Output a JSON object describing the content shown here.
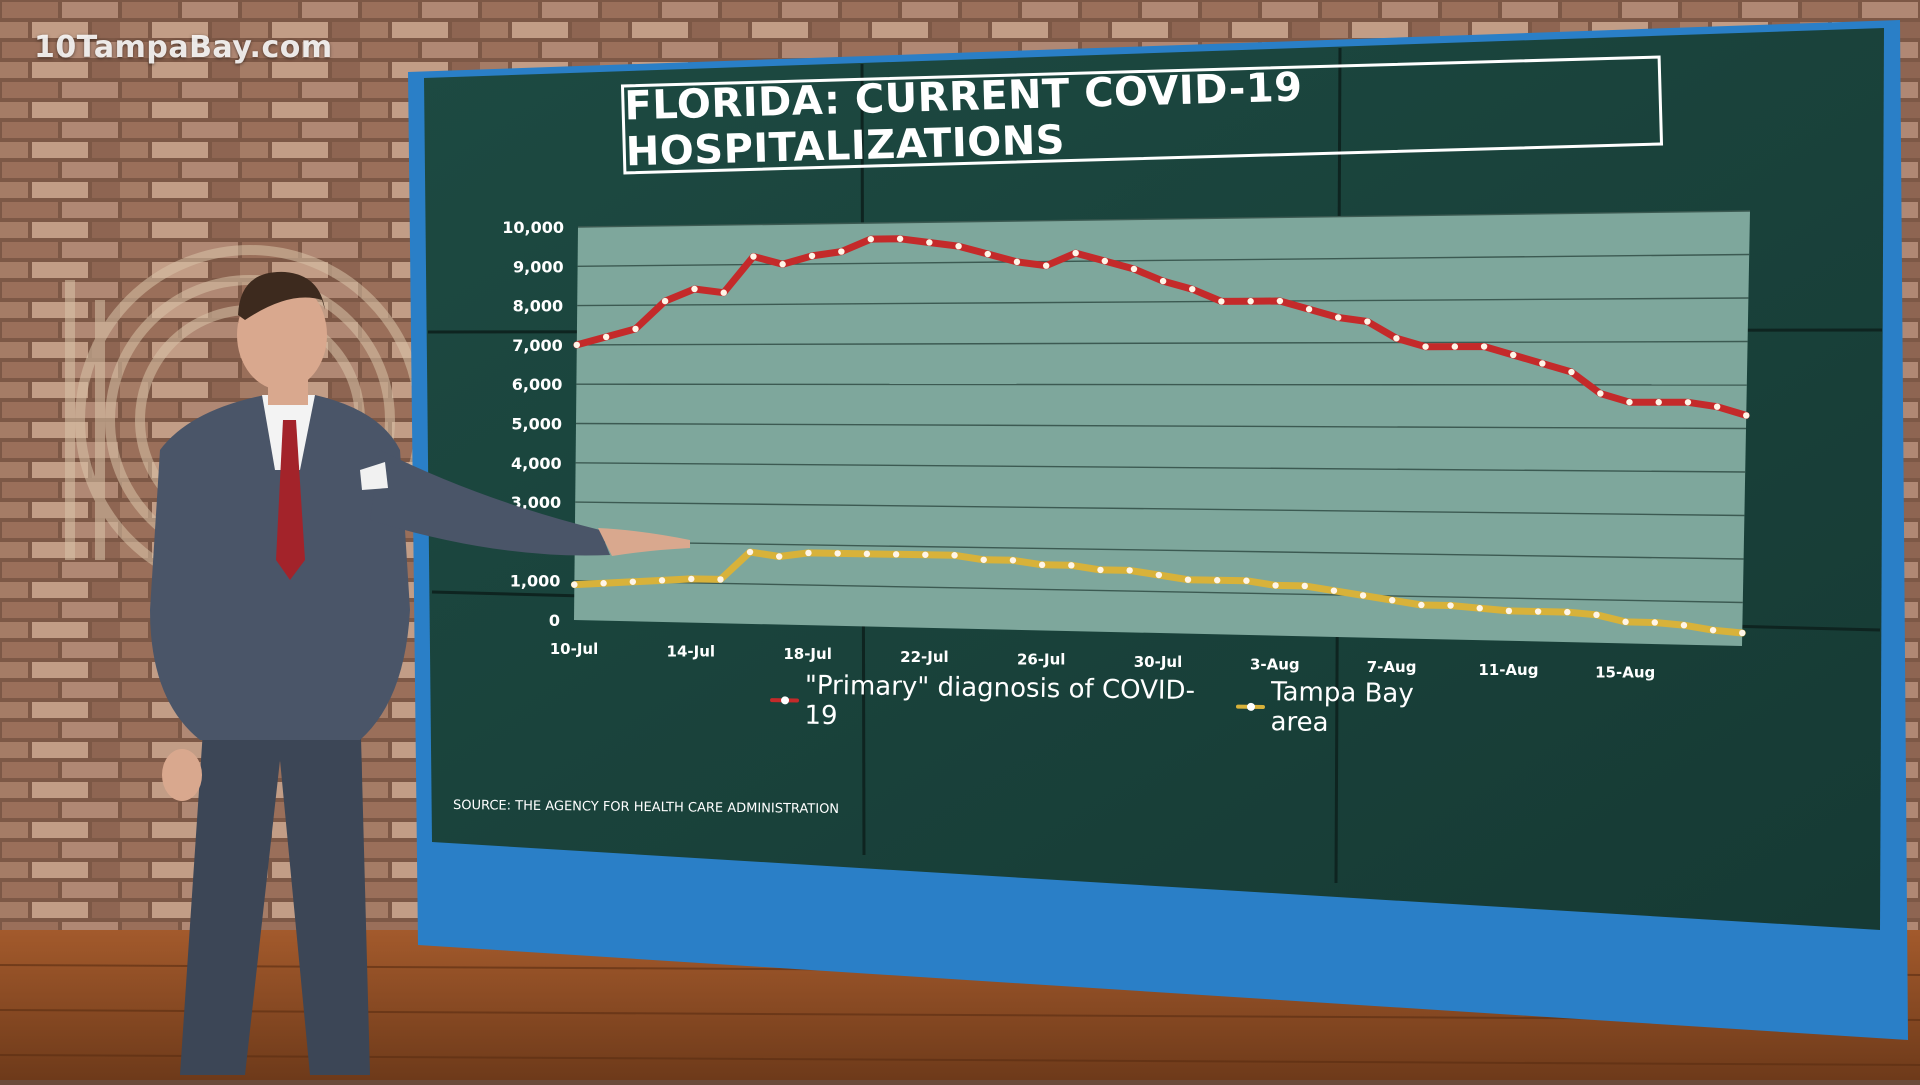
{
  "watermark": "10TampaBay.com",
  "title": "FLORIDA: CURRENT COVID-19 HOSPITALIZATIONS",
  "source": "SOURCE: THE AGENCY FOR HEALTH CARE ADMINISTRATION",
  "colors": {
    "primary_series": "#c42a2a",
    "tampa_series": "#d8b23a",
    "board_background": "#1f4840",
    "plot_background": "#7ea79c"
  },
  "chart_data": {
    "type": "line",
    "title": "FLORIDA: CURRENT COVID-19 HOSPITALIZATIONS",
    "xlabel": "",
    "ylabel": "",
    "ylim": [
      0,
      10000
    ],
    "y_ticks": [
      "10,000",
      "9,000",
      "8,000",
      "7,000",
      "6,000",
      "5,000",
      "4,000",
      "3,000",
      "1,000",
      "0"
    ],
    "x_tick_labels": [
      "10-Jul",
      "14-Jul",
      "18-Jul",
      "22-Jul",
      "26-Jul",
      "30-Jul",
      "3-Aug",
      "7-Aug",
      "11-Aug",
      "15-Aug"
    ],
    "x_tick_indices": [
      0,
      4,
      8,
      12,
      16,
      20,
      24,
      28,
      32,
      36
    ],
    "legend_position": "bottom",
    "grid": true,
    "series": [
      {
        "name": "\"Primary\" diagnosis of COVID-19",
        "color": "#c42a2a",
        "values": [
          7000,
          7200,
          7400,
          8100,
          8400,
          8300,
          9200,
          9000,
          9200,
          9300,
          9600,
          9600,
          9500,
          9400,
          9200,
          9000,
          8900,
          9200,
          9000,
          8800,
          8500,
          8300,
          8000,
          8000,
          8000,
          7800,
          7600,
          7500,
          7100,
          6900,
          6900,
          6900,
          6700,
          6500,
          6300,
          5800,
          5600,
          5600,
          5600,
          5500,
          5300
        ]
      },
      {
        "name": "Tampa Bay area",
        "color": "#d8b23a",
        "values": [
          900,
          950,
          1000,
          1050,
          1100,
          1100,
          1800,
          1700,
          1800,
          1800,
          1800,
          1800,
          1800,
          1800,
          1700,
          1700,
          1600,
          1600,
          1500,
          1500,
          1400,
          1300,
          1300,
          1300,
          1200,
          1200,
          1100,
          1000,
          900,
          800,
          800,
          750,
          700,
          700,
          700,
          650,
          500,
          500,
          450,
          350,
          300
        ]
      }
    ]
  }
}
